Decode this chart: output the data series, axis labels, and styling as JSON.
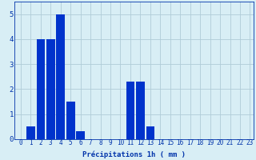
{
  "xlabel": "Précipitations 1h ( mm )",
  "hours": [
    0,
    1,
    2,
    3,
    4,
    5,
    6,
    7,
    8,
    9,
    10,
    11,
    12,
    13,
    14,
    15,
    16,
    17,
    18,
    19,
    20,
    21,
    22,
    23
  ],
  "values": [
    0,
    0.5,
    4.0,
    4.0,
    5.0,
    1.5,
    0.3,
    0,
    0,
    0,
    0,
    2.3,
    2.3,
    0.5,
    0,
    0,
    0,
    0,
    0,
    0,
    0,
    0,
    0,
    0
  ],
  "bar_color": "#0033cc",
  "background_color": "#d8eef5",
  "grid_color": "#b0ccd8",
  "ylim": [
    0,
    5.5
  ],
  "yticks": [
    0,
    1,
    2,
    3,
    4,
    5
  ],
  "text_color": "#0033aa",
  "xlabel_fontsize": 6.5,
  "tick_fontsize": 5.5
}
